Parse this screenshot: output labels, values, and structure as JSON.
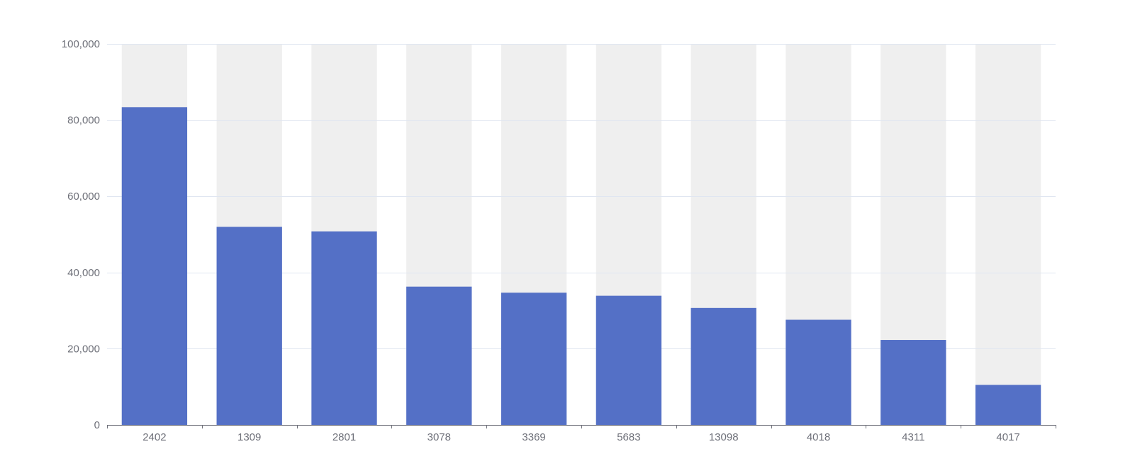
{
  "chart_data": {
    "type": "bar",
    "categories": [
      "2402",
      "1309",
      "2801",
      "3078",
      "3369",
      "5683",
      "13098",
      "4018",
      "4311",
      "4017"
    ],
    "values": [
      83400,
      52000,
      50800,
      36300,
      34700,
      33900,
      30700,
      27600,
      22300,
      10500
    ],
    "ylim": [
      0,
      100000
    ],
    "yticks": [
      0,
      20000,
      40000,
      60000,
      80000,
      100000
    ],
    "ytick_labels": [
      "0",
      "20,000",
      "40,000",
      "60,000",
      "80,000",
      "100,000"
    ],
    "background_bars": true,
    "grid": true,
    "title": "",
    "xlabel": "",
    "ylabel": ""
  },
  "colors": {
    "bar": "#5470c6",
    "bar_background": "#efefef",
    "grid": "#e0e6f1",
    "axis": "#6e7079",
    "tick_text": "#6e7079"
  }
}
